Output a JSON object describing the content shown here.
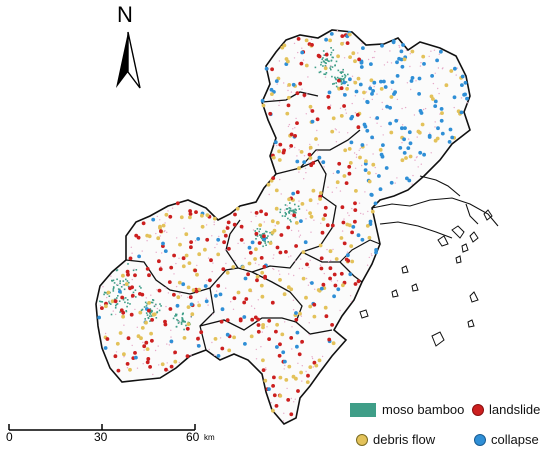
{
  "north_arrow": {
    "label": "N"
  },
  "legend": {
    "items": [
      {
        "label": "moso bamboo",
        "color": "#3f9e88",
        "shape": "rect"
      },
      {
        "label": "landslide",
        "color": "#cc1f1f",
        "shape": "dot"
      },
      {
        "label": "debris flow",
        "color": "#e3c25a",
        "shape": "dot"
      },
      {
        "label": "collapse",
        "color": "#2f8fd6",
        "shape": "dot"
      }
    ]
  },
  "scale_bar": {
    "ticks": [
      "0",
      "30",
      "60"
    ],
    "unit": "km"
  }
}
